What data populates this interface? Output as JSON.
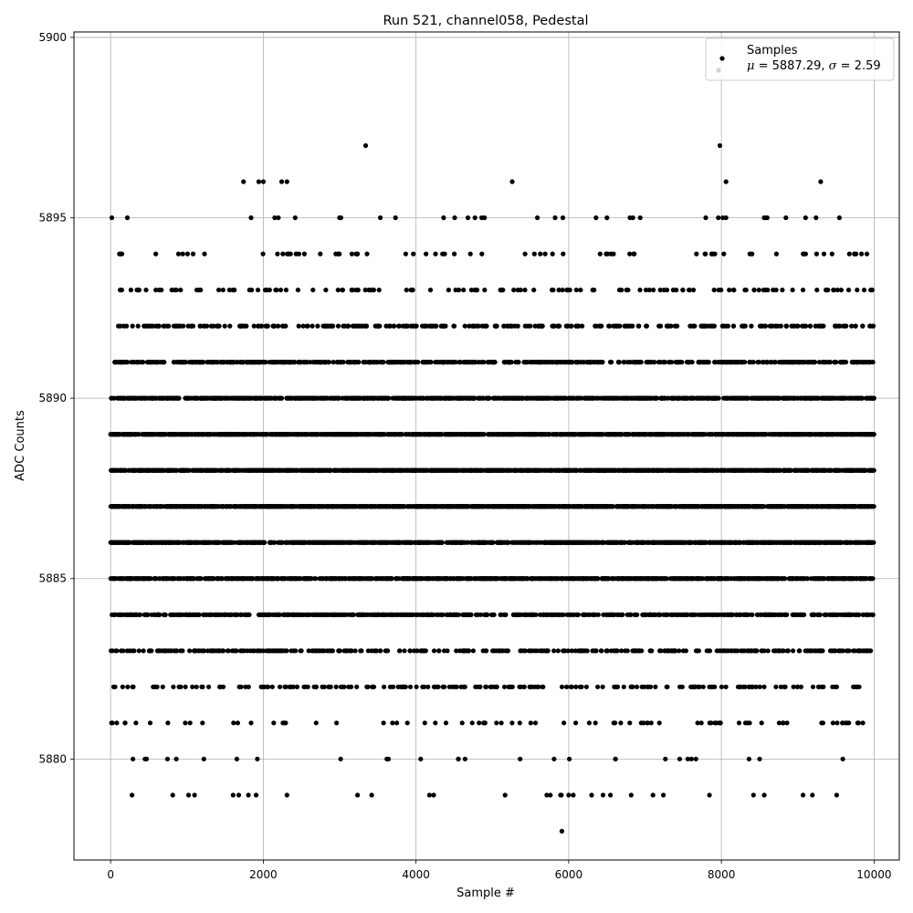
{
  "chart_data": {
    "type": "scatter",
    "title": "Run 521, channel058, Pedestal",
    "xlabel": "Sample #",
    "ylabel": "ADC Counts",
    "xlim": [
      -480,
      10330
    ],
    "ylim": [
      5877.2,
      5900.15
    ],
    "xticks": [
      0,
      2000,
      4000,
      6000,
      8000,
      10000
    ],
    "yticks": [
      5880,
      5885,
      5890,
      5895,
      5900
    ],
    "grid": true,
    "legend": {
      "placement": "top-right",
      "entry_label": "Samples",
      "stat_mu_symbol": "μ",
      "stat_mu_value": " = 5887.29, ",
      "stat_sigma_symbol": "σ",
      "stat_sigma_value": " = 2.59"
    },
    "series": [
      {
        "name": "Samples",
        "color": "#000000",
        "marker": "dot",
        "n_samples": 10000,
        "mean": 5887.29,
        "std": 2.59,
        "value_range": [
          5878,
          5897
        ],
        "notable_points": [
          {
            "x": 3340,
            "y": 5897
          },
          {
            "x": 7980,
            "y": 5897
          },
          {
            "x": 5910,
            "y": 5878
          },
          {
            "x": 280,
            "y": 5879
          },
          {
            "x": 5760,
            "y": 5879
          },
          {
            "x": 6000,
            "y": 5879
          },
          {
            "x": 6060,
            "y": 5879
          },
          {
            "x": 6450,
            "y": 5879
          },
          {
            "x": 7240,
            "y": 5879
          },
          {
            "x": 8420,
            "y": 5879
          },
          {
            "x": 9510,
            "y": 5879
          },
          {
            "x": 1740,
            "y": 5896
          },
          {
            "x": 1940,
            "y": 5896
          },
          {
            "x": 2000,
            "y": 5896
          },
          {
            "x": 2240,
            "y": 5896
          },
          {
            "x": 2310,
            "y": 5896
          },
          {
            "x": 5260,
            "y": 5896
          },
          {
            "x": 8060,
            "y": 5896
          },
          {
            "x": 9300,
            "y": 5896
          },
          {
            "x": 220,
            "y": 5895
          },
          {
            "x": 1840,
            "y": 5895
          },
          {
            "x": 2150,
            "y": 5895
          },
          {
            "x": 4860,
            "y": 5895
          },
          {
            "x": 5590,
            "y": 5895
          },
          {
            "x": 7960,
            "y": 5895
          },
          {
            "x": 8020,
            "y": 5895
          },
          {
            "x": 8560,
            "y": 5895
          },
          {
            "x": 8600,
            "y": 5895
          }
        ]
      }
    ]
  }
}
